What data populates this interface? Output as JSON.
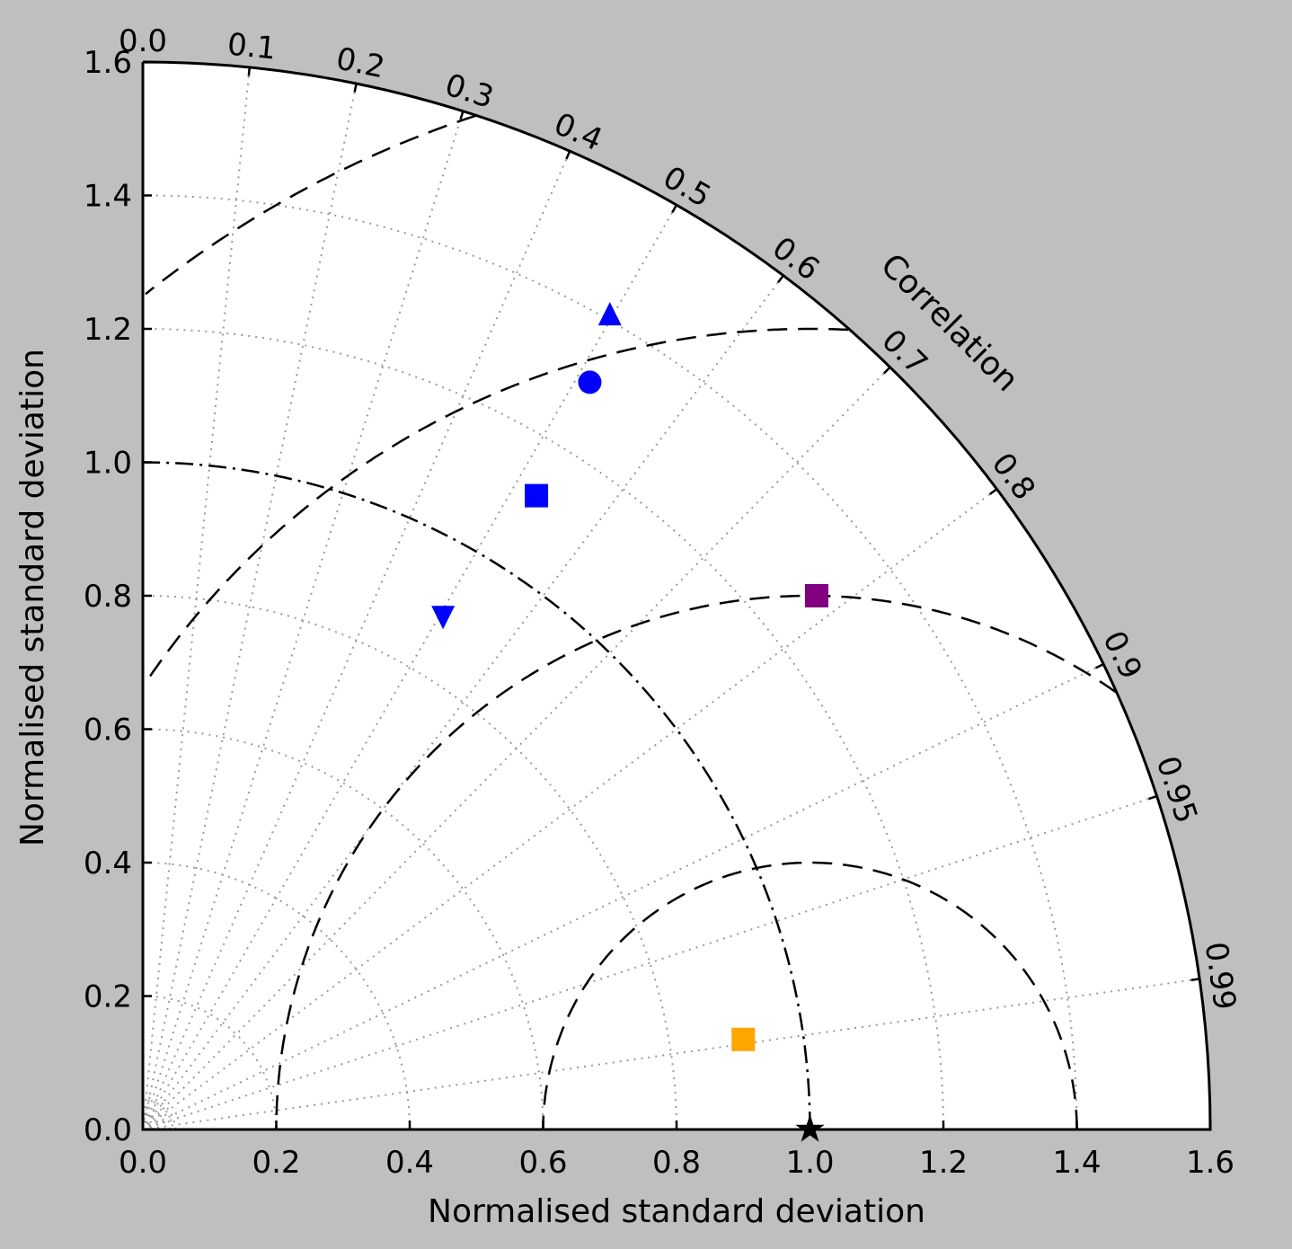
{
  "chart_data": {
    "type": "scatter",
    "subtype": "taylor-diagram",
    "title": "",
    "xlabel": "Normalised standard deviation",
    "ylabel": "Normalised standard deviation",
    "angular_label": "Correlation",
    "std_range": [
      0,
      1.6
    ],
    "x_ticks": [
      "0.0",
      "0.2",
      "0.4",
      "0.6",
      "0.8",
      "1.0",
      "1.2",
      "1.4",
      "1.6"
    ],
    "y_ticks": [
      "0.0",
      "0.2",
      "0.4",
      "0.6",
      "0.8",
      "1.0",
      "1.2",
      "1.4",
      "1.6"
    ],
    "correlation_ticks": [
      "0.0",
      "0.1",
      "0.2",
      "0.3",
      "0.4",
      "0.5",
      "0.6",
      "0.7",
      "0.8",
      "0.9",
      "0.95",
      "0.99"
    ],
    "std_gridlines": [
      0.2,
      0.4,
      0.6,
      0.8,
      1.0,
      1.2,
      1.4
    ],
    "rms_contours": [
      0.4,
      0.8,
      1.2,
      1.6,
      2.0
    ],
    "reference": {
      "std": 1.0,
      "corr": 1.0,
      "marker": "star",
      "color": "#000000"
    },
    "reference_std_contour": 1.0,
    "grid": true,
    "points": [
      {
        "x": 0.7,
        "y": 1.22,
        "marker": "triangle-up",
        "color": "#0000ff"
      },
      {
        "x": 0.67,
        "y": 1.12,
        "marker": "circle",
        "color": "#0000ff"
      },
      {
        "x": 0.59,
        "y": 0.95,
        "marker": "square",
        "color": "#0000ff"
      },
      {
        "x": 0.45,
        "y": 0.77,
        "marker": "triangle-down",
        "color": "#0000ff"
      },
      {
        "x": 1.01,
        "y": 0.8,
        "marker": "square",
        "color": "#800080"
      },
      {
        "x": 0.9,
        "y": 0.135,
        "marker": "square",
        "color": "#ffa500"
      }
    ]
  },
  "colors": {
    "background": "#bfbfbf",
    "plot_area": "#ffffff"
  }
}
